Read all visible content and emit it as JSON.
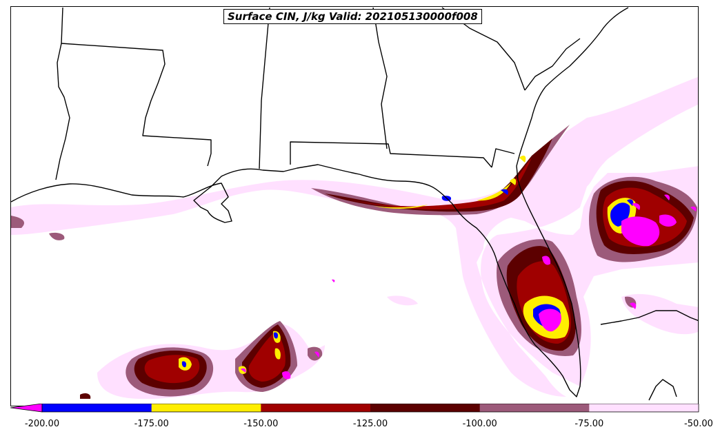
{
  "map": {
    "title": "Surface CIN, J/kg Valid: 202105130000f008",
    "variable": "Surface CIN",
    "units": "J/kg",
    "valid": "202105130000f008",
    "region": "US Gulf Coast / Florida / Gulf of Mexico"
  },
  "colorbar": {
    "extend": "min",
    "tick_labels": [
      "-200.00",
      "-175.00",
      "-150.00",
      "-125.00",
      "-100.00",
      "-75.00",
      "-50.00"
    ],
    "levels": [
      -200,
      -175,
      -150,
      -125,
      -100,
      -75,
      -50
    ],
    "bins": [
      {
        "range": "< -200",
        "color": "#ff00ff"
      },
      {
        "range": "-200 to -175",
        "color": "#0000ff"
      },
      {
        "range": "-175 to -150",
        "color": "#ffee00"
      },
      {
        "range": "-150 to -125",
        "color": "#a00000"
      },
      {
        "range": "-125 to -100",
        "color": "#5c0000"
      },
      {
        "range": "-100 to -75",
        "color": "#9c5a7a"
      },
      {
        "range": "-75 to -50",
        "color": "#ffe0ff"
      }
    ]
  }
}
